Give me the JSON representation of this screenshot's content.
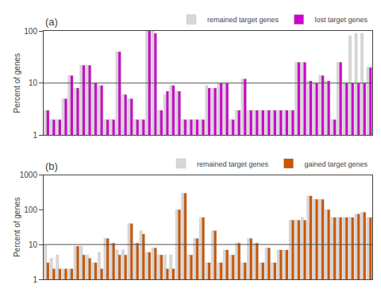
{
  "chart_data": [
    {
      "type": "bar",
      "title": "(a)",
      "y_label": "Percent of genes",
      "categories": [
        null,
        null,
        null,
        null,
        null,
        null,
        null,
        null,
        null,
        null,
        null,
        null,
        null,
        null,
        null,
        null,
        null,
        null,
        null,
        null,
        null,
        null,
        null,
        null,
        null,
        null,
        null,
        null,
        null,
        null,
        null,
        null,
        null,
        null,
        null,
        null,
        null,
        null,
        null,
        null,
        null,
        null,
        null,
        null,
        null,
        null,
        null,
        null,
        null,
        null,
        null,
        null,
        null,
        null,
        null
      ],
      "series": [
        {
          "name": "remained target genes",
          "color": "#d8d8d8",
          "values": [
            3,
            2,
            2,
            5,
            14,
            8,
            22,
            22,
            10,
            9,
            2,
            2,
            40,
            6,
            5,
            2,
            2,
            100,
            100,
            3,
            6,
            9,
            7,
            2,
            2,
            2,
            2,
            9,
            8,
            10,
            10,
            2,
            3,
            12,
            3,
            3,
            3,
            3,
            3,
            3,
            3,
            3,
            25,
            25,
            11,
            10,
            14,
            11,
            2,
            25,
            10,
            80,
            90,
            90,
            20
          ]
        },
        {
          "name": "lost target genes",
          "color": "#cc00cc",
          "values": [
            3,
            2,
            2,
            5,
            14,
            8,
            22,
            22,
            10,
            9,
            2,
            2,
            40,
            6,
            5,
            2,
            2,
            100,
            90,
            3,
            7,
            9,
            7,
            2,
            2,
            2,
            2,
            8,
            8,
            10,
            10,
            2,
            3,
            12,
            3,
            3,
            3,
            3,
            3,
            3,
            3,
            3,
            25,
            25,
            11,
            10,
            14,
            11,
            2,
            25,
            10,
            10,
            10,
            10,
            20
          ]
        }
      ],
      "log": "y",
      "ylim": [
        1,
        100
      ],
      "yticks": [
        1,
        10,
        100
      ],
      "hline": 10,
      "grid": false,
      "legend": "upper right",
      "tick_labels": "y"
    },
    {
      "type": "bar",
      "title": "(b)",
      "y_label": "Percent of genes",
      "categories": [
        null,
        null,
        null,
        null,
        null,
        null,
        null,
        null,
        null,
        null,
        null,
        null,
        null,
        null,
        null,
        null,
        null,
        null,
        null,
        null,
        null,
        null,
        null,
        null,
        null,
        null,
        null,
        null,
        null,
        null,
        null,
        null,
        null,
        null,
        null,
        null,
        null,
        null,
        null,
        null,
        null,
        null,
        null,
        null,
        null,
        null,
        null,
        null,
        null,
        null,
        null,
        null,
        null,
        null,
        null
      ],
      "series": [
        {
          "name": "remained target genes",
          "color": "#d8d8d8",
          "values": [
            10,
            4,
            5,
            2,
            2,
            9,
            9,
            5,
            3,
            6,
            15,
            11,
            7,
            7,
            40,
            11,
            25,
            6,
            8,
            5,
            5,
            5,
            100,
            300,
            5,
            15,
            60,
            3,
            25,
            3,
            7,
            5,
            11,
            3,
            15,
            11,
            3,
            8,
            3,
            7,
            7,
            50,
            50,
            60,
            250,
            200,
            200,
            100,
            60,
            60,
            60,
            60,
            75,
            85,
            60
          ]
        },
        {
          "name": "gained target genes",
          "color": "#cc5500",
          "values": [
            3,
            2,
            2,
            2,
            2,
            9,
            5,
            4,
            3,
            2,
            15,
            11,
            5,
            5,
            40,
            11,
            20,
            6,
            8,
            5,
            2,
            2,
            100,
            300,
            5,
            15,
            60,
            3,
            25,
            3,
            7,
            5,
            11,
            3,
            15,
            11,
            3,
            8,
            3,
            7,
            7,
            50,
            50,
            50,
            250,
            200,
            200,
            100,
            60,
            60,
            60,
            60,
            75,
            85,
            60
          ]
        }
      ],
      "log": "y",
      "ylim": [
        1,
        1000
      ],
      "yticks": [
        1,
        10,
        100,
        1000
      ],
      "hline": 10,
      "grid": false,
      "legend": "upper right",
      "tick_labels": "y"
    }
  ]
}
